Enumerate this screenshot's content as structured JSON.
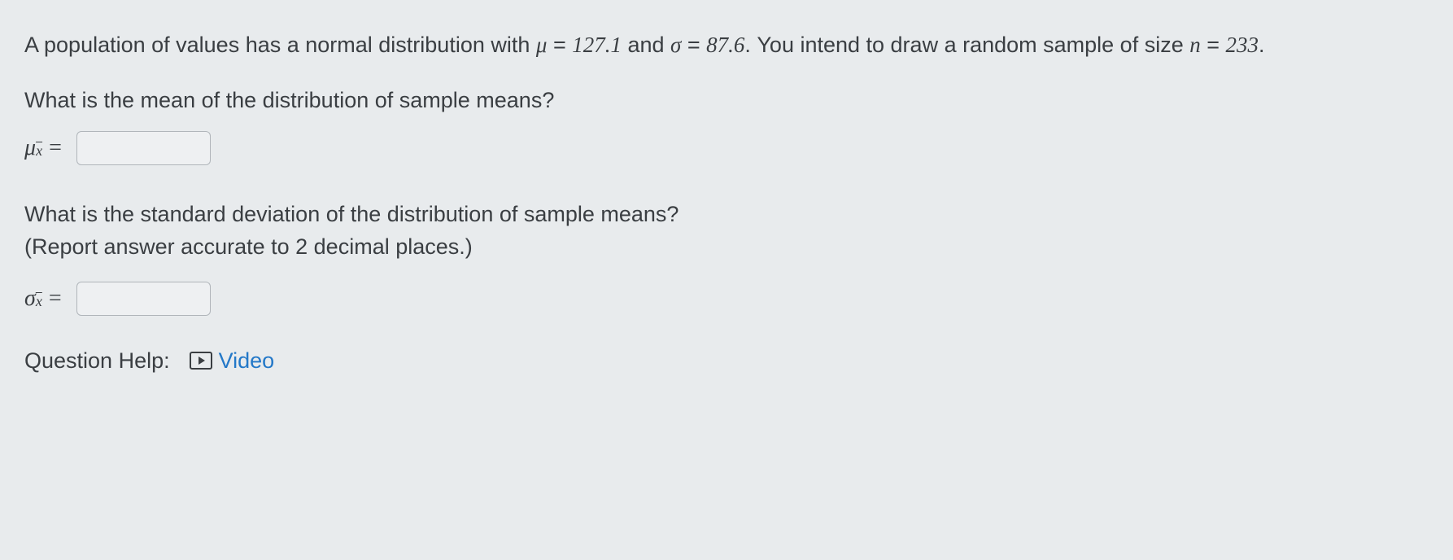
{
  "question": {
    "intro_part1": "A population of values has a normal distribution with ",
    "mu_symbol": "μ",
    "mu_eq": " = ",
    "mu_value": "127.1",
    "and_text": " and ",
    "sigma_symbol": "σ",
    "sigma_eq": " = ",
    "sigma_value": "87.6",
    "intro_part2": ". You intend to draw a random sample of size ",
    "n_symbol": "n",
    "n_eq": " = ",
    "n_value": "233",
    "period": "."
  },
  "prompt1": "What is the mean of the distribution of sample means?",
  "input1": {
    "symbol_main": "μ",
    "symbol_sub": "x̄",
    "equals": "=",
    "value": ""
  },
  "prompt2_line1": "What is the standard deviation of the distribution of sample means?",
  "prompt2_line2": "(Report answer accurate to 2 decimal places.)",
  "input2": {
    "symbol_main": "σ",
    "symbol_sub": "x̄",
    "equals": "=",
    "value": ""
  },
  "help": {
    "label": "Question Help:",
    "video_text": "Video"
  },
  "styling": {
    "background_color": "#e8ebed",
    "text_color": "#3a3e42",
    "link_color": "#2378c8",
    "input_border": "#b0b5ba",
    "input_bg": "#eef0f2",
    "body_fontsize": 27,
    "math_font": "Times New Roman"
  }
}
